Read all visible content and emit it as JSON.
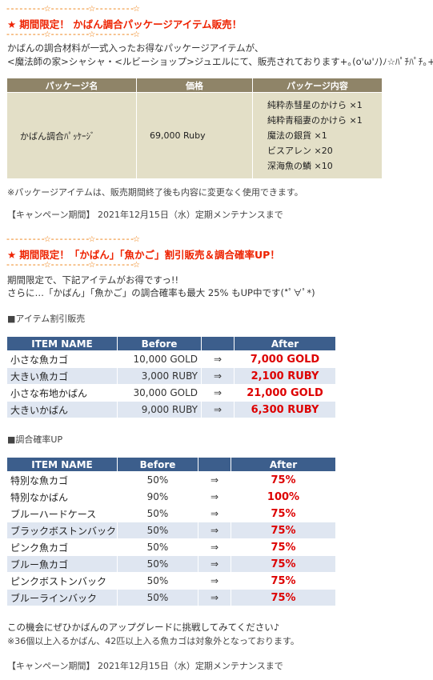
{
  "divider": {
    "segment": "- - - - - - - - -",
    "star": "☆"
  },
  "section1": {
    "title": "期間限定！ かばん調合パッケージアイテム販売！",
    "star": "★",
    "intro_1": "かばんの調合材料が一式入ったお得なパッケージアイテムが、",
    "intro_2": "<魔法師の家>シャシャ・<ルビーショップ>ジュエルにて、販売されております+｡(o'ω'ﾉ)ﾉ☆ﾊﾟﾁﾊﾟﾁ｡+",
    "table": {
      "headers": [
        "パッケージ名",
        "価格",
        "パッケージ内容"
      ],
      "name": "かばん調合ﾊﾟｯｹｰｼﾞ",
      "price": "69,000 Ruby",
      "contents": [
        "純粋赤彗星のかけら ×1",
        "純粋青稲妻のかけら ×1",
        "魔法の銀貨 ×1",
        "ビスアレン ×20",
        "深海魚の鱗 ×10"
      ]
    },
    "note": "※パッケージアイテムは、販売期間終了後も内容に変更なく使用できます。",
    "period": "【キャンペーン期間】 2021年12月15日（水）定期メンテナンスまで"
  },
  "section2": {
    "title": "期間限定！「かばん」「魚かご」割引販売＆調合確率UP！",
    "star": "★",
    "intro_1": "期間限定で、下記アイテムがお得ですっ!!",
    "intro_2": "さらに…「かばん」「魚かご」の調合確率も最大 25% もUP中です(*ﾟ∀ﾟ*)",
    "sale_label": "■アイテム割引販売",
    "sale_table": {
      "headers": [
        "ITEM NAME",
        "Before",
        "",
        "After"
      ],
      "rows": [
        {
          "name": "小さな魚カゴ",
          "before": "10,000 GOLD",
          "arrow": "⇒",
          "after": "7,000 GOLD"
        },
        {
          "name": "大きい魚カゴ",
          "before": "3,000 RUBY",
          "arrow": "⇒",
          "after": "2,100 RUBY"
        },
        {
          "name": "小さな布地かばん",
          "before": "30,000 GOLD",
          "arrow": "⇒",
          "after": "21,000 GOLD"
        },
        {
          "name": "大きいかばん",
          "before": "9,000 RUBY",
          "arrow": "⇒",
          "after": "6,300 RUBY"
        }
      ]
    },
    "rate_label": "■調合確率UP",
    "rate_table": {
      "headers": [
        "ITEM NAME",
        "Before",
        "",
        "After"
      ],
      "rows": [
        {
          "name": "特別な魚カゴ",
          "before": "50%",
          "arrow": "⇒",
          "after": "75%"
        },
        {
          "name": "特別なかばん",
          "before": "90%",
          "arrow": "⇒",
          "after": "100%"
        },
        {
          "name": "ブルーハードケース",
          "before": "50%",
          "arrow": "⇒",
          "after": "75%"
        },
        {
          "name": "ブラックボストンバック",
          "before": "50%",
          "arrow": "⇒",
          "after": "75%"
        },
        {
          "name": "ピンク魚カゴ",
          "before": "50%",
          "arrow": "⇒",
          "after": "75%"
        },
        {
          "name": "ブルー魚カゴ",
          "before": "50%",
          "arrow": "⇒",
          "after": "75%"
        },
        {
          "name": "ピンクボストンバック",
          "before": "50%",
          "arrow": "⇒",
          "after": "75%"
        },
        {
          "name": "ブルーラインバック",
          "before": "50%",
          "arrow": "⇒",
          "after": "75%"
        }
      ]
    },
    "outro_1": "この機会にぜひかばんのアップグレードに挑戦してみてください♪",
    "outro_2": "※36個以上入るかばん、42匹以上入る魚カゴは対象外となっております。",
    "period": "【キャンペーン期間】 2021年12月15日（水）定期メンテナンスまで"
  }
}
